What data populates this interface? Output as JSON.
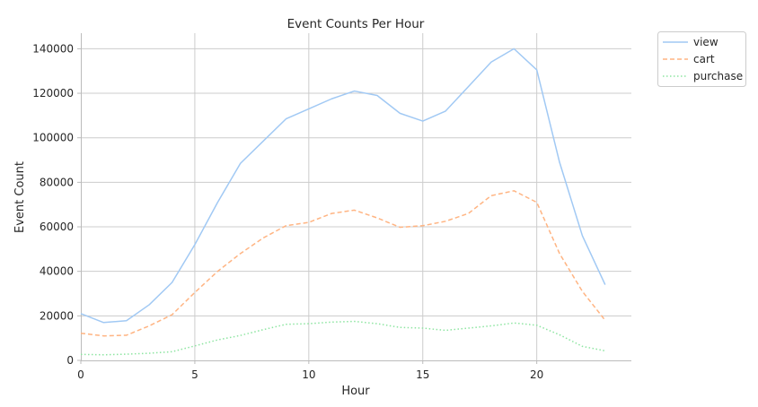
{
  "chart_data": {
    "type": "line",
    "title": "Event Counts Per Hour",
    "xlabel": "Hour",
    "ylabel": "Event Count",
    "xlim": [
      0,
      24.15
    ],
    "ylim": [
      0,
      147000
    ],
    "x_ticks": [
      0,
      5,
      10,
      15,
      20
    ],
    "y_ticks": [
      0,
      20000,
      40000,
      60000,
      80000,
      100000,
      120000,
      140000
    ],
    "grid": true,
    "legend_position": "outside upper right",
    "x": [
      0,
      1,
      2,
      3,
      4,
      5,
      6,
      7,
      8,
      9,
      10,
      11,
      12,
      13,
      14,
      15,
      16,
      17,
      18,
      19,
      20,
      21,
      22,
      23
    ],
    "series": [
      {
        "name": "view",
        "color": "#a1c9f4",
        "dash": "solid",
        "values": [
          21000,
          17000,
          17800,
          25000,
          35000,
          52000,
          71000,
          88500,
          98500,
          108500,
          113000,
          117500,
          121000,
          119000,
          111000,
          107500,
          112000,
          123000,
          134000,
          140000,
          130500,
          89000,
          56000,
          34000
        ]
      },
      {
        "name": "cart",
        "color": "#ffb482",
        "dash": "dashed",
        "values": [
          12200,
          11000,
          11300,
          15500,
          20500,
          30500,
          40000,
          48000,
          55000,
          60500,
          62000,
          66000,
          67500,
          64000,
          59800,
          60500,
          62500,
          66000,
          74000,
          76200,
          71000,
          48000,
          31000,
          18000
        ]
      },
      {
        "name": "purchase",
        "color": "#8de5a1",
        "dash": "dotted",
        "values": [
          2700,
          2500,
          2800,
          3200,
          3900,
          6500,
          9200,
          11200,
          13800,
          16200,
          16500,
          17200,
          17500,
          16500,
          14800,
          14500,
          13500,
          14500,
          15500,
          16800,
          15800,
          11500,
          6300,
          4300
        ]
      }
    ]
  }
}
